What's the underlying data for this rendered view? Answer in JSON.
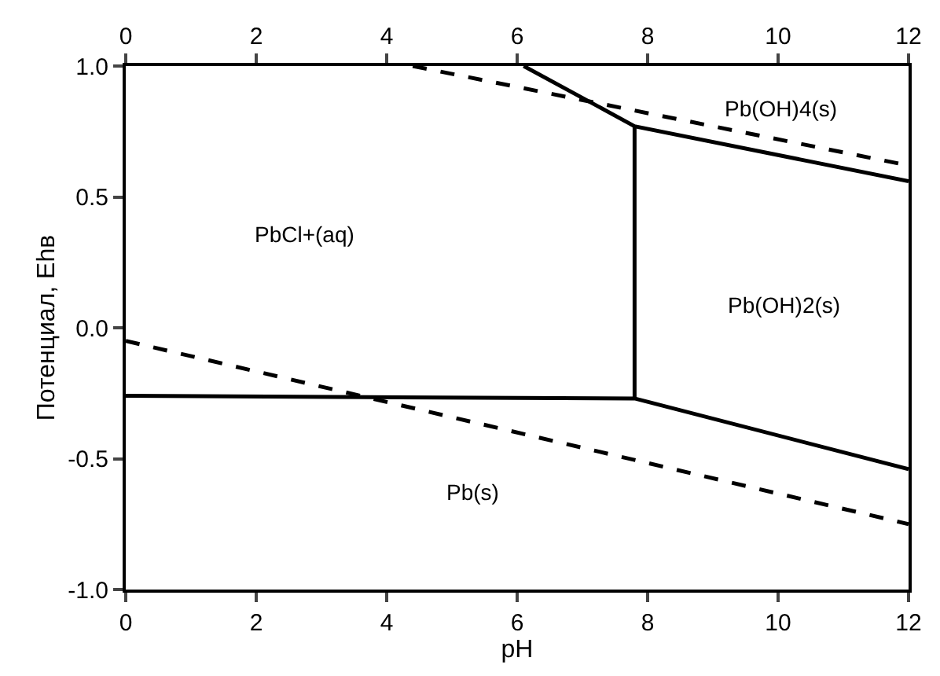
{
  "chart_data": {
    "type": "line",
    "xlabel": "pH",
    "ylabel": "Потенциал, Ehв",
    "xlim": [
      0,
      12
    ],
    "xticks": [
      0,
      2,
      4,
      6,
      8,
      10,
      12
    ],
    "x2lim": [
      0,
      12
    ],
    "x2ticks": [
      0,
      2,
      4,
      6,
      8,
      10,
      12
    ],
    "ylim": [
      -1.0,
      1.0
    ],
    "yticks": [
      {
        "value": -1.0,
        "label": "-1.0"
      },
      {
        "value": -0.5,
        "label": "-0.5"
      },
      {
        "value": 0.0,
        "label": "0.0"
      },
      {
        "value": 0.5,
        "label": "0.5"
      },
      {
        "value": 1.0,
        "label": "1.0"
      }
    ],
    "series": [
      {
        "color": "#000000",
        "line_style": "solid",
        "x": [
          6.1,
          7.8,
          12
        ],
        "values": [
          1.0,
          0.77,
          0.56
        ]
      },
      {
        "color": "#000000",
        "line_style": "solid",
        "x": [
          7.8,
          7.8
        ],
        "values": [
          -0.27,
          0.77
        ]
      },
      {
        "color": "#000000",
        "line_style": "solid",
        "x": [
          0,
          7.8,
          12
        ],
        "values": [
          -0.26,
          -0.27,
          -0.54
        ]
      },
      {
        "color": "#000000",
        "line_style": "dashed",
        "x": [
          4.4,
          12
        ],
        "values": [
          1.0,
          0.62
        ]
      },
      {
        "color": "#000000",
        "line_style": "dashed",
        "x": [
          0,
          12
        ],
        "values": [
          -0.05,
          -0.75
        ]
      }
    ],
    "annotations": [
      "PbCl+(aq)",
      "Pb(OH)2(s)",
      "Pb(OH)4(s)",
      "Pb(s)"
    ]
  }
}
